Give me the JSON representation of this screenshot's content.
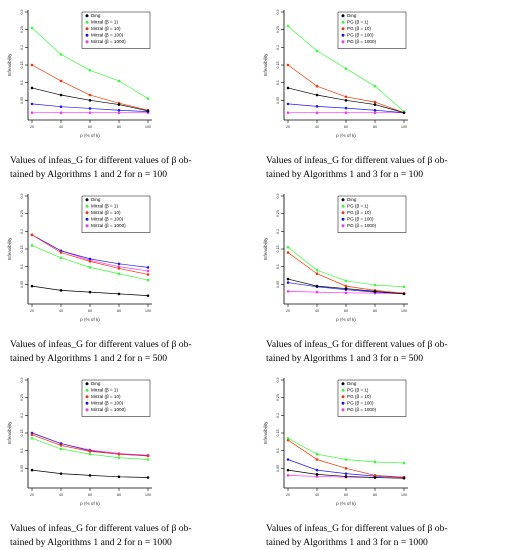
{
  "colors": {
    "ding": "#000000",
    "beta1": "#33ff33",
    "beta10": "#ff3300",
    "beta100": "#1a1aff",
    "beta1000": "#ff33ff",
    "axis": "#000000",
    "tick": "#333333"
  },
  "panels": [
    {
      "caption_line1": "Values of infeas_G for different values of β ob-",
      "caption_line2": "tained by Algorithms 1 and 2 for n = 100",
      "chart_data": {
        "type": "line",
        "x": [
          20,
          40,
          60,
          80,
          100
        ],
        "x_ticks": [
          "20",
          "40",
          "60",
          "80",
          "100"
        ],
        "xlabel": "p (% of k)",
        "ylabel": "Infeasibility",
        "ylim": [
          0,
          0.3
        ],
        "y_ticks": [
          0.05,
          0.1,
          0.15,
          0.2,
          0.25,
          0.3
        ],
        "y_tick_labels": [
          "0.05",
          "0.1",
          "0.15",
          "0.2",
          "0.25",
          "0.3"
        ],
        "legend_position": "top-right",
        "series": [
          {
            "name": "Ding",
            "color_key": "ding",
            "values": [
              0.085,
              0.065,
              0.05,
              0.038,
              0.02
            ]
          },
          {
            "name": "Mirzal (β = 1)",
            "color_key": "beta1",
            "values": [
              0.255,
              0.18,
              0.135,
              0.105,
              0.055
            ]
          },
          {
            "name": "Mirzal (β = 10)",
            "color_key": "beta10",
            "values": [
              0.15,
              0.105,
              0.065,
              0.042,
              0.022
            ]
          },
          {
            "name": "Mirzal (β = 100)",
            "color_key": "beta100",
            "values": [
              0.04,
              0.032,
              0.027,
              0.022,
              0.018
            ]
          },
          {
            "name": "Mirzal (β = 1000)",
            "color_key": "beta1000",
            "values": [
              0.015,
              0.015,
              0.015,
              0.015,
              0.015
            ]
          }
        ]
      }
    },
    {
      "caption_line1": "Values of infeas_G for different values of β ob-",
      "caption_line2": "tained by Algorithms 1 and 3 for n = 100",
      "chart_data": {
        "type": "line",
        "x": [
          20,
          40,
          60,
          80,
          100
        ],
        "x_ticks": [
          "20",
          "40",
          "60",
          "80",
          "100"
        ],
        "xlabel": "p (% of k)",
        "ylabel": "Infeasibility",
        "ylim": [
          0,
          0.3
        ],
        "y_ticks": [
          0.05,
          0.1,
          0.15,
          0.2,
          0.25,
          0.3
        ],
        "y_tick_labels": [
          "0.05",
          "0.1",
          "0.15",
          "0.2",
          "0.25",
          "0.3"
        ],
        "legend_position": "top-right",
        "series": [
          {
            "name": "Ding",
            "color_key": "ding",
            "values": [
              0.085,
              0.065,
              0.05,
              0.038,
              0.015
            ]
          },
          {
            "name": "PG (β = 1)",
            "color_key": "beta1",
            "values": [
              0.26,
              0.19,
              0.14,
              0.09,
              0.018
            ]
          },
          {
            "name": "PG (β = 10)",
            "color_key": "beta10",
            "values": [
              0.15,
              0.09,
              0.06,
              0.045,
              0.015
            ]
          },
          {
            "name": "PG (β = 100)",
            "color_key": "beta100",
            "values": [
              0.04,
              0.033,
              0.028,
              0.022,
              0.015
            ]
          },
          {
            "name": "PG (β = 1000)",
            "color_key": "beta1000",
            "values": [
              0.015,
              0.015,
              0.015,
              0.015,
              0.015
            ]
          }
        ]
      }
    },
    {
      "caption_line1": "Values of infeas_G for different values of β ob-",
      "caption_line2": "tained by Algorithms 1 and 2 for n = 500",
      "chart_data": {
        "type": "line",
        "x": [
          20,
          40,
          60,
          80,
          100
        ],
        "x_ticks": [
          "20",
          "40",
          "60",
          "80",
          "100"
        ],
        "xlabel": "p (% of k)",
        "ylabel": "Infeasibility",
        "ylim": [
          0,
          0.3
        ],
        "y_ticks": [
          0.05,
          0.1,
          0.15,
          0.2,
          0.25,
          0.3
        ],
        "y_tick_labels": [
          "0.05",
          "0.1",
          "0.15",
          "0.2",
          "0.25",
          "0.3"
        ],
        "legend_position": "top-right",
        "series": [
          {
            "name": "Ding",
            "color_key": "ding",
            "values": [
              0.045,
              0.033,
              0.028,
              0.023,
              0.018
            ]
          },
          {
            "name": "Mirzal (β = 1)",
            "color_key": "beta1",
            "values": [
              0.16,
              0.125,
              0.098,
              0.08,
              0.062
            ]
          },
          {
            "name": "Mirzal (β = 10)",
            "color_key": "beta10",
            "values": [
              0.19,
              0.14,
              0.115,
              0.095,
              0.078
            ]
          },
          {
            "name": "Mirzal (β = 100)",
            "color_key": "beta100",
            "values": [
              0.19,
              0.145,
              0.122,
              0.108,
              0.098
            ]
          },
          {
            "name": "Mirzal (β = 1000)",
            "color_key": "beta1000",
            "values": [
              0.19,
              0.145,
              0.118,
              0.1,
              0.088
            ]
          }
        ]
      }
    },
    {
      "caption_line1": "Values of infeas_G for different values of β ob-",
      "caption_line2": "tained by Algorithms 1 and 3 for n = 500",
      "chart_data": {
        "type": "line",
        "x": [
          20,
          40,
          60,
          80,
          100
        ],
        "x_ticks": [
          "20",
          "40",
          "60",
          "80",
          "100"
        ],
        "xlabel": "p (% of k)",
        "ylabel": "Infeasibility",
        "ylim": [
          0,
          0.3
        ],
        "y_ticks": [
          0.05,
          0.1,
          0.15,
          0.2,
          0.25,
          0.3
        ],
        "y_tick_labels": [
          "0.05",
          "0.1",
          "0.15",
          "0.2",
          "0.25",
          "0.3"
        ],
        "legend_position": "top-right",
        "series": [
          {
            "name": "Ding",
            "color_key": "ding",
            "values": [
              0.065,
              0.045,
              0.038,
              0.03,
              0.023
            ]
          },
          {
            "name": "PG (β = 1)",
            "color_key": "beta1",
            "values": [
              0.155,
              0.09,
              0.06,
              0.048,
              0.043
            ]
          },
          {
            "name": "PG (β = 10)",
            "color_key": "beta10",
            "values": [
              0.14,
              0.08,
              0.045,
              0.033,
              0.025
            ]
          },
          {
            "name": "PG (β = 100)",
            "color_key": "beta100",
            "values": [
              0.055,
              0.043,
              0.035,
              0.028,
              0.024
            ]
          },
          {
            "name": "PG (β = 1000)",
            "color_key": "beta1000",
            "values": [
              0.03,
              0.028,
              0.026,
              0.025,
              0.024
            ]
          }
        ]
      }
    },
    {
      "caption_line1": "Values of infeas_G for different values of β ob-",
      "caption_line2": "tained by Algorithms 1 and 2 for n = 1000",
      "chart_data": {
        "type": "line",
        "x": [
          20,
          40,
          60,
          80,
          100
        ],
        "x_ticks": [
          "20",
          "40",
          "60",
          "80",
          "100"
        ],
        "xlabel": "p (% of k)",
        "ylabel": "Infeasibility",
        "ylim": [
          0,
          0.3
        ],
        "y_ticks": [
          0.05,
          0.1,
          0.15,
          0.2,
          0.25,
          0.3
        ],
        "y_tick_labels": [
          "0.05",
          "0.1",
          "0.15",
          "0.2",
          "0.25",
          "0.3"
        ],
        "legend_position": "top-right",
        "series": [
          {
            "name": "Ding",
            "color_key": "ding",
            "values": [
              0.045,
              0.035,
              0.03,
              0.026,
              0.024
            ]
          },
          {
            "name": "Mirzal (β = 1)",
            "color_key": "beta1",
            "values": [
              0.135,
              0.105,
              0.09,
              0.08,
              0.075
            ]
          },
          {
            "name": "Mirzal (β = 10)",
            "color_key": "beta10",
            "values": [
              0.145,
              0.115,
              0.098,
              0.09,
              0.085
            ]
          },
          {
            "name": "Mirzal (β = 100)",
            "color_key": "beta100",
            "values": [
              0.15,
              0.12,
              0.1,
              0.09,
              0.086
            ]
          },
          {
            "name": "Mirzal (β = 1000)",
            "color_key": "beta1000",
            "values": [
              0.15,
              0.12,
              0.102,
              0.092,
              0.087
            ]
          }
        ]
      }
    },
    {
      "caption_line1": "Values of infeas_G for different values of β ob-",
      "caption_line2": "tained by Algorithms 1 and 3 for n = 1000",
      "chart_data": {
        "type": "line",
        "x": [
          20,
          40,
          60,
          80,
          100
        ],
        "x_ticks": [
          "20",
          "40",
          "60",
          "80",
          "100"
        ],
        "xlabel": "p (% of k)",
        "ylabel": "Infeasibility",
        "ylim": [
          0,
          0.3
        ],
        "y_ticks": [
          0.05,
          0.1,
          0.15,
          0.2,
          0.25,
          0.3
        ],
        "y_tick_labels": [
          "0.05",
          "0.1",
          "0.15",
          "0.2",
          "0.25",
          "0.3"
        ],
        "legend_position": "top-right",
        "series": [
          {
            "name": "Ding",
            "color_key": "ding",
            "values": [
              0.045,
              0.033,
              0.027,
              0.024,
              0.022
            ]
          },
          {
            "name": "PG (β = 1)",
            "color_key": "beta1",
            "values": [
              0.135,
              0.09,
              0.075,
              0.068,
              0.065
            ]
          },
          {
            "name": "PG (β = 10)",
            "color_key": "beta10",
            "values": [
              0.13,
              0.075,
              0.05,
              0.03,
              0.025
            ]
          },
          {
            "name": "PG (β = 100)",
            "color_key": "beta100",
            "values": [
              0.075,
              0.045,
              0.035,
              0.028,
              0.025
            ]
          },
          {
            "name": "PG (β = 1000)",
            "color_key": "beta1000",
            "values": [
              0.03,
              0.027,
              0.025,
              0.024,
              0.023
            ]
          }
        ]
      }
    }
  ]
}
